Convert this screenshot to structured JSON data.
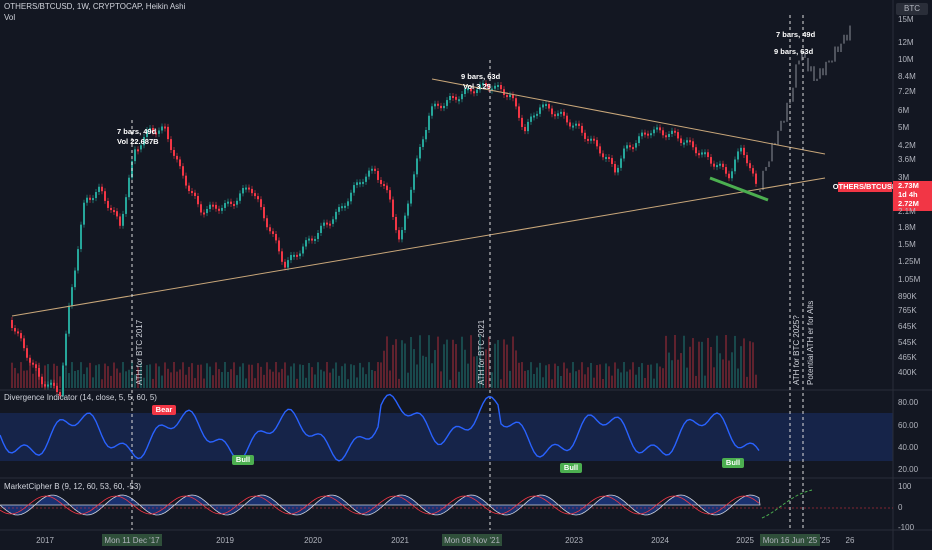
{
  "header": {
    "title": "OTHERS/BTCUSD, 1W, CRYPTOCAP, Heikin Ashi",
    "volume": "Vol",
    "currency": "BTC"
  },
  "annotations": [
    "7 bars, 49d",
    "Vol 22.687B",
    "9 bars, 63d",
    "Vol 3.25",
    "7 bars, 49d",
    "9 bars, 63d"
  ],
  "vertical_notes": [
    "ATH for BTC 2017",
    "ATH for BTC 2021",
    "ATH for BTC 2025?",
    "Potential ATH er for Alts"
  ],
  "price_tag": {
    "symbol": "OTHERS/BTCUSD",
    "last": "2.73M",
    "countdown": "1d 4h",
    "close": "2.72M"
  },
  "price_axis": [
    "15M",
    "12M",
    "10M",
    "8.4M",
    "7.2M",
    "6M",
    "5M",
    "4.2M",
    "3.6M",
    "3M",
    "2.1M",
    "1.8M",
    "1.5M",
    "1.25M",
    "1.05M",
    "890K",
    "765K",
    "645K",
    "545K",
    "465K",
    "400K"
  ],
  "indicators": [
    {
      "title": "Divergence Indicator (14, close, 5, 5, 60, 5)",
      "labels": [
        "Bear",
        "Bull",
        "Bull",
        "Bull"
      ],
      "axis": [
        "80.00",
        "60.00",
        "40.00",
        "20.00"
      ]
    },
    {
      "title": "MarketCipher B (9, 12, 60, 53, 60, -53)",
      "axis": [
        "100",
        "0",
        "-100"
      ]
    }
  ],
  "time_axis": [
    "2017",
    "Mon 11 Dec '17",
    "2019",
    "2020",
    "2021",
    "Mon 08 Nov '21",
    "2023",
    "2024",
    "2025",
    "Mon 16 Jun '25",
    "'25",
    "26"
  ]
}
